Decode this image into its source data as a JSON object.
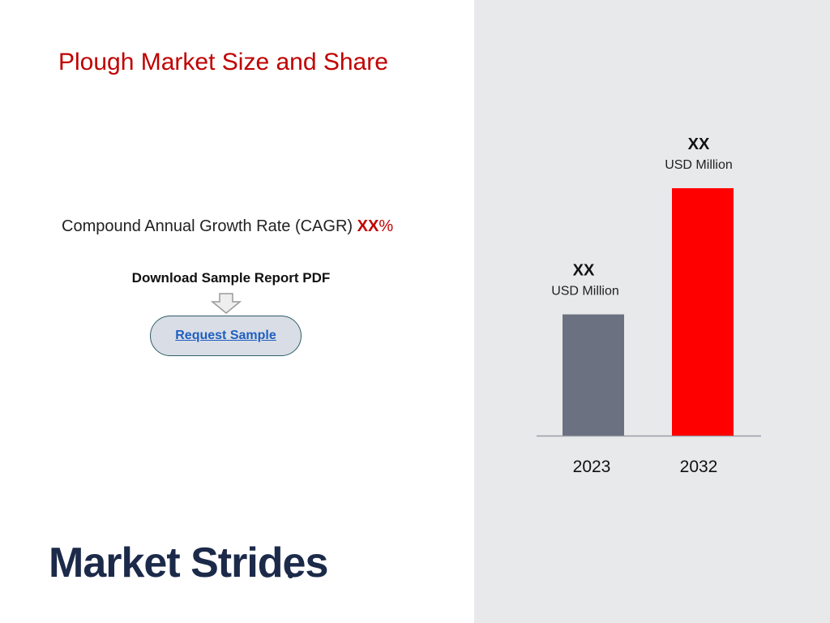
{
  "header": {
    "title": "Plough Market Size and Share"
  },
  "cagr": {
    "label": "Compound Annual Growth Rate (CAGR)",
    "value": "XX",
    "suffix": "%"
  },
  "download": {
    "label": "Download Sample Report PDF",
    "button_label": "Request Sample"
  },
  "logo": {
    "text": "Market Strides"
  },
  "colors": {
    "title": "#c00000",
    "bar_2023": "#6b7180",
    "bar_2032": "#ff0000",
    "panel": "#e8e9eb"
  },
  "chart_data": {
    "type": "bar",
    "categories": [
      "2023",
      "2032"
    ],
    "series": [
      {
        "values": [
          0.49,
          1.0
        ],
        "value_labels": [
          "XX",
          "XX"
        ],
        "unit_labels": [
          "USD Million",
          "USD Million"
        ]
      }
    ],
    "bar_colors": [
      "#6b7180",
      "#ff0000"
    ],
    "ylim": [
      0,
      1.0
    ],
    "grid": false
  }
}
